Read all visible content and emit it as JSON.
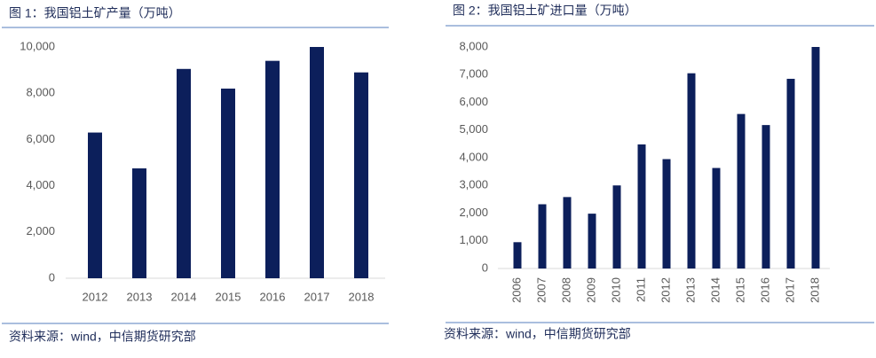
{
  "chart_data": [
    {
      "type": "bar",
      "title": "图 1：我国铝土矿产量（万吨）",
      "source": "资料来源：wind，中信期货研究部",
      "categories": [
        "2012",
        "2013",
        "2014",
        "2015",
        "2016",
        "2017",
        "2018"
      ],
      "values": [
        6300,
        4750,
        9050,
        8200,
        9400,
        10000,
        8900
      ],
      "color": "#0c1f5b",
      "ylim": [
        0,
        10000
      ],
      "yticks": [
        0,
        {
          "value": 2000,
          "label": "2,000"
        },
        {
          "value": 4000,
          "label": "4,000"
        },
        {
          "value": 6000,
          "label": "6,000"
        },
        {
          "value": 8000,
          "label": "8,000"
        },
        {
          "value": 10000,
          "label": "10,000"
        }
      ],
      "grid": false
    },
    {
      "type": "bar",
      "title": "图 2：我国铝土矿进口量（万吨）",
      "source": "资料来源：wind，中信期货研究部",
      "categories": [
        "2006",
        "2007",
        "2008",
        "2009",
        "2010",
        "2011",
        "2012",
        "2013",
        "2014",
        "2015",
        "2016",
        "2017",
        "2018"
      ],
      "values": [
        950,
        2320,
        2580,
        1980,
        3000,
        4480,
        3950,
        7050,
        3630,
        5580,
        5180,
        6850,
        8000
      ],
      "color": "#0c1f5b",
      "ylim": [
        0,
        8000
      ],
      "yticks": [
        0,
        {
          "value": 1000,
          "label": "1,000"
        },
        {
          "value": 2000,
          "label": "2,000"
        },
        {
          "value": 3000,
          "label": "3,000"
        },
        {
          "value": 4000,
          "label": "4,000"
        },
        {
          "value": 5000,
          "label": "5,000"
        },
        {
          "value": 6000,
          "label": "6,000"
        },
        {
          "value": 7000,
          "label": "7,000"
        },
        {
          "value": 8000,
          "label": "8,000"
        }
      ],
      "grid": false
    }
  ]
}
